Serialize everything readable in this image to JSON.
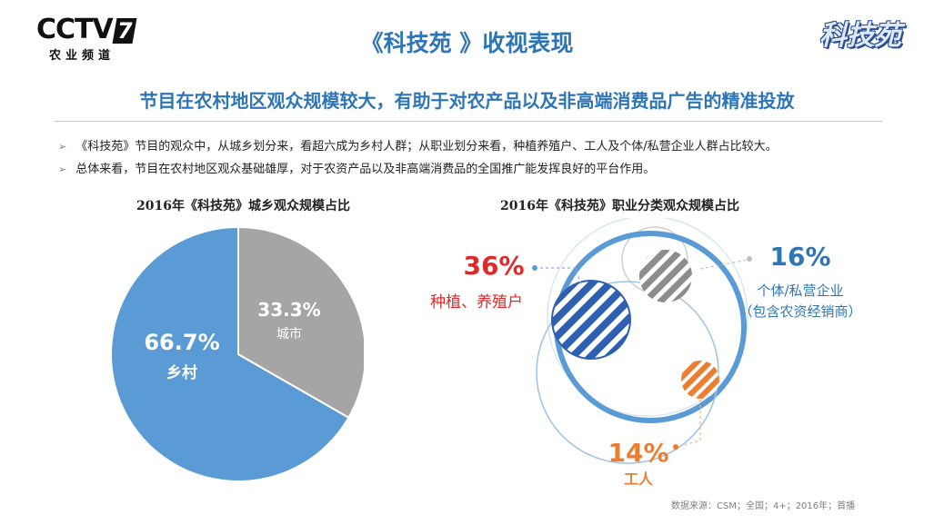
{
  "header": {
    "logo_left_text": "CCTV",
    "logo_left_number": "7",
    "logo_left_subtitle": "农业频道",
    "logo_right_text": "科技苑",
    "title": "《科技苑 》收视表现",
    "subtitle": "节目在农村地区观众规模较大，有助于对农产品以及非高端消费品广告的精准投放"
  },
  "bullets": [
    "《科技苑》节目的观众中，从城乡划分来，看超六成为乡村人群；从职业划分来看，种植养殖户、工人及个体/私营企业人群占比较大。",
    "总体来看，节目在农村地区观众基础雄厚，对于农资产品以及非高端消费品的全国推广能发挥良好的平台作用。"
  ],
  "chart_data": [
    {
      "type": "pie",
      "title": "2016年《科技苑》城乡观众规模占比",
      "slices": [
        {
          "label": "乡村",
          "value": 66.7,
          "value_label": "66.7%",
          "color": "#5b9bd5"
        },
        {
          "label": "城市",
          "value": 33.3,
          "value_label": "33.3%",
          "color": "#a5a5a5"
        }
      ]
    },
    {
      "type": "bubble",
      "title": "2016年《科技苑》职业分类观众规模占比",
      "items": [
        {
          "label": "种植、养殖户",
          "value": 36,
          "value_label": "36%",
          "color": "#e0282a",
          "fill": "#2e5fb0"
        },
        {
          "label": "个体/私营企业",
          "label_line2": "（包含农资经销商）",
          "value": 16,
          "value_label": "16%",
          "color": "#2e75b6",
          "fill": "#8c8c8c"
        },
        {
          "label": "工人",
          "value": 14,
          "value_label": "14%",
          "color": "#ed7d31",
          "fill": "#ed7d31"
        }
      ]
    }
  ],
  "source": "数据来源：CSM；全国；4+；2016年；首播"
}
